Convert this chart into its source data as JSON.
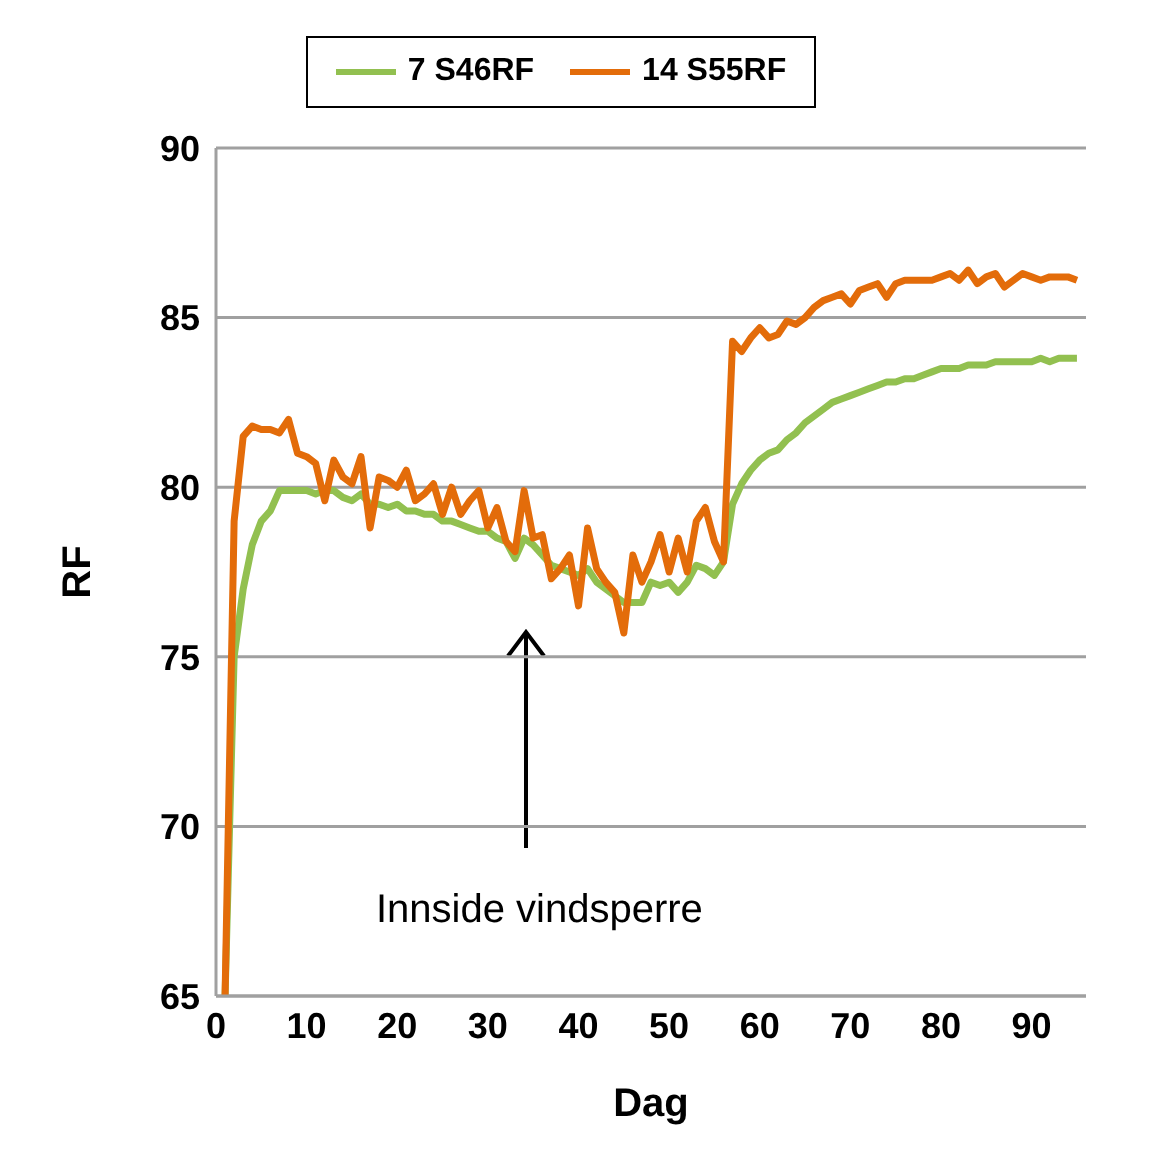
{
  "chart_data": {
    "type": "line",
    "xlabel": "Dag",
    "ylabel": "RF",
    "x": [
      1,
      2,
      3,
      4,
      5,
      6,
      7,
      8,
      9,
      10,
      11,
      12,
      13,
      14,
      15,
      16,
      17,
      18,
      19,
      20,
      21,
      22,
      23,
      24,
      25,
      26,
      27,
      28,
      29,
      30,
      31,
      32,
      33,
      34,
      35,
      36,
      37,
      38,
      39,
      40,
      41,
      42,
      43,
      44,
      45,
      46,
      47,
      48,
      49,
      50,
      51,
      52,
      53,
      54,
      55,
      56,
      57,
      58,
      59,
      60,
      61,
      62,
      63,
      64,
      65,
      66,
      67,
      68,
      69,
      70,
      71,
      72,
      73,
      74,
      75,
      76,
      77,
      78,
      79,
      80,
      81,
      82,
      83,
      84,
      85,
      86,
      87,
      88,
      89,
      90,
      91,
      92,
      93,
      94,
      95
    ],
    "series": [
      {
        "name": "7 S46RF",
        "color": "#92c050",
        "values": [
          65,
          75,
          77,
          78.3,
          79,
          79.3,
          79.9,
          79.9,
          79.9,
          79.9,
          79.8,
          79.9,
          79.9,
          79.7,
          79.6,
          79.8,
          79.5,
          79.5,
          79.4,
          79.5,
          79.3,
          79.3,
          79.2,
          79.2,
          79.0,
          79.0,
          78.9,
          78.8,
          78.7,
          78.7,
          78.5,
          78.4,
          77.9,
          78.5,
          78.3,
          78.0,
          77.7,
          77.6,
          77.5,
          77.4,
          77.6,
          77.2,
          77.0,
          76.8,
          76.6,
          76.6,
          76.6,
          77.2,
          77.1,
          77.2,
          76.9,
          77.2,
          77.7,
          77.6,
          77.4,
          77.8,
          79.5,
          80.1,
          80.5,
          80.8,
          81.0,
          81.1,
          81.4,
          81.6,
          81.9,
          82.1,
          82.3,
          82.5,
          82.6,
          82.7,
          82.8,
          82.9,
          83.0,
          83.1,
          83.1,
          83.2,
          83.2,
          83.3,
          83.4,
          83.5,
          83.5,
          83.5,
          83.6,
          83.6,
          83.6,
          83.7,
          83.7,
          83.7,
          83.7,
          83.7,
          83.8,
          83.7,
          83.8,
          83.8,
          83.8
        ]
      },
      {
        "name": "14 S55RF",
        "color": "#e36c0a",
        "values": [
          65,
          79,
          81.5,
          81.8,
          81.7,
          81.7,
          81.6,
          82.0,
          81.0,
          80.9,
          80.7,
          79.6,
          80.8,
          80.3,
          80.1,
          80.9,
          78.8,
          80.3,
          80.2,
          80.0,
          80.5,
          79.6,
          79.8,
          80.1,
          79.2,
          80.0,
          79.2,
          79.6,
          79.9,
          78.8,
          79.4,
          78.4,
          78.1,
          79.9,
          78.5,
          78.6,
          77.3,
          77.6,
          78.0,
          76.5,
          78.8,
          77.6,
          77.2,
          76.9,
          75.7,
          78.0,
          77.2,
          77.8,
          78.6,
          77.5,
          78.5,
          77.5,
          79.0,
          79.4,
          78.4,
          77.8,
          84.3,
          84.0,
          84.4,
          84.7,
          84.4,
          84.5,
          84.9,
          84.8,
          85.0,
          85.3,
          85.5,
          85.6,
          85.7,
          85.4,
          85.8,
          85.9,
          86.0,
          85.6,
          86.0,
          86.1,
          86.1,
          86.1,
          86.1,
          86.2,
          86.3,
          86.1,
          86.4,
          86.0,
          86.2,
          86.3,
          85.9,
          86.1,
          86.3,
          86.2,
          86.1,
          86.2,
          86.2,
          86.2,
          86.1
        ]
      }
    ],
    "xlim": [
      0,
      96
    ],
    "xticks": [
      0,
      10,
      20,
      30,
      40,
      50,
      60,
      70,
      80,
      90
    ],
    "ylim": [
      65,
      90
    ],
    "yticks": [
      65,
      70,
      75,
      80,
      85,
      90
    ],
    "grid": "y",
    "legend": "top",
    "marker": "none",
    "line_style": "solid",
    "annotations": [
      "Innside vindsperre"
    ]
  }
}
